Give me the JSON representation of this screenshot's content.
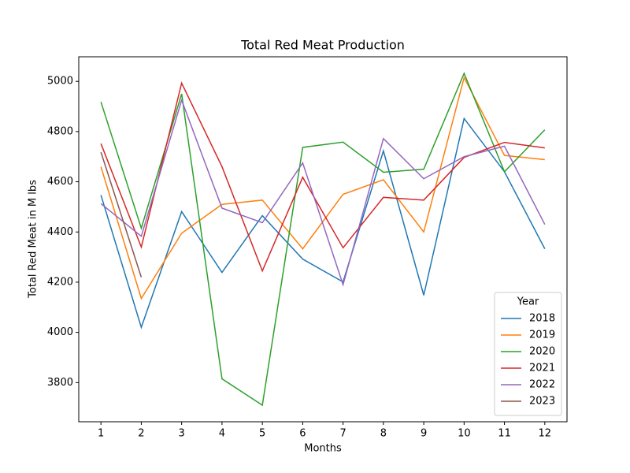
{
  "chart_data": {
    "type": "line",
    "title": "Total Red Meat Production",
    "x_label": "Months",
    "y_label": "Total Red Meat in M lbs",
    "x": [
      1,
      2,
      3,
      4,
      5,
      6,
      7,
      8,
      9,
      10,
      11,
      12
    ],
    "xlim": [
      0.45,
      12.55
    ],
    "xticks": [
      1,
      2,
      3,
      4,
      5,
      6,
      7,
      8,
      9,
      10,
      11,
      12
    ],
    "ylim": [
      3644,
      5098
    ],
    "yticks": [
      3800,
      4000,
      4200,
      4400,
      4600,
      4800,
      5000
    ],
    "legend_title": "Year",
    "legend_position": "lower right",
    "series": [
      {
        "name": "2018",
        "color": "#1f77b4",
        "values": [
          4547,
          4020,
          4481,
          4239,
          4465,
          4292,
          4201,
          4723,
          4148,
          4852,
          4640,
          4333
        ]
      },
      {
        "name": "2019",
        "color": "#ff7f0e",
        "values": [
          4660,
          4135,
          4395,
          4510,
          4527,
          4333,
          4550,
          4608,
          4400,
          5015,
          4705,
          4688
        ]
      },
      {
        "name": "2020",
        "color": "#2ca02c",
        "values": [
          4918,
          4415,
          4950,
          3815,
          3710,
          4737,
          4758,
          4638,
          4650,
          5032,
          4640,
          4807
        ]
      },
      {
        "name": "2021",
        "color": "#d62728",
        "values": [
          4752,
          4340,
          4993,
          4660,
          4245,
          4618,
          4337,
          4538,
          4527,
          4697,
          4757,
          4735
        ]
      },
      {
        "name": "2022",
        "color": "#9467bd",
        "values": [
          4513,
          4383,
          4925,
          4495,
          4437,
          4675,
          4190,
          4772,
          4612,
          4700,
          4742,
          4430
        ]
      },
      {
        "name": "2023",
        "color": "#8c564b",
        "values": [
          4718,
          4220,
          null,
          null,
          null,
          null,
          null,
          null,
          null,
          null,
          null,
          null
        ]
      }
    ]
  }
}
